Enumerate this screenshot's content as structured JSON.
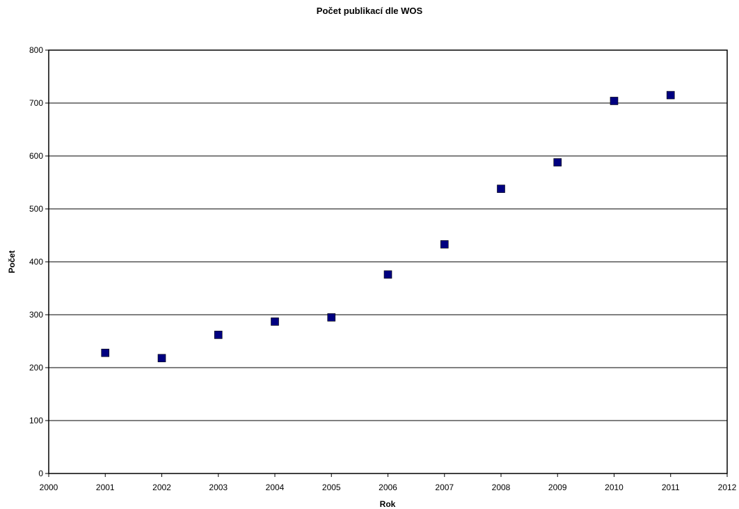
{
  "chart_data": {
    "type": "scatter",
    "title": "Počet publikací dle WOS",
    "xlabel": "Rok",
    "ylabel": "Počet",
    "xlim": [
      2000,
      2012
    ],
    "ylim": [
      0,
      800
    ],
    "xticks": [
      2000,
      2001,
      2002,
      2003,
      2004,
      2005,
      2006,
      2007,
      2008,
      2009,
      2010,
      2011,
      2012
    ],
    "yticks": [
      0,
      100,
      200,
      300,
      400,
      500,
      600,
      700,
      800
    ],
    "grid": "horizontal",
    "legend": "none",
    "series": [
      {
        "marker": "square",
        "color": "#000080",
        "points": [
          {
            "x": 2001,
            "y": 228
          },
          {
            "x": 2002,
            "y": 218
          },
          {
            "x": 2003,
            "y": 262
          },
          {
            "x": 2004,
            "y": 287
          },
          {
            "x": 2005,
            "y": 295
          },
          {
            "x": 2006,
            "y": 376
          },
          {
            "x": 2007,
            "y": 433
          },
          {
            "x": 2008,
            "y": 538
          },
          {
            "x": 2009,
            "y": 588
          },
          {
            "x": 2010,
            "y": 704
          },
          {
            "x": 2011,
            "y": 715
          }
        ]
      }
    ]
  }
}
